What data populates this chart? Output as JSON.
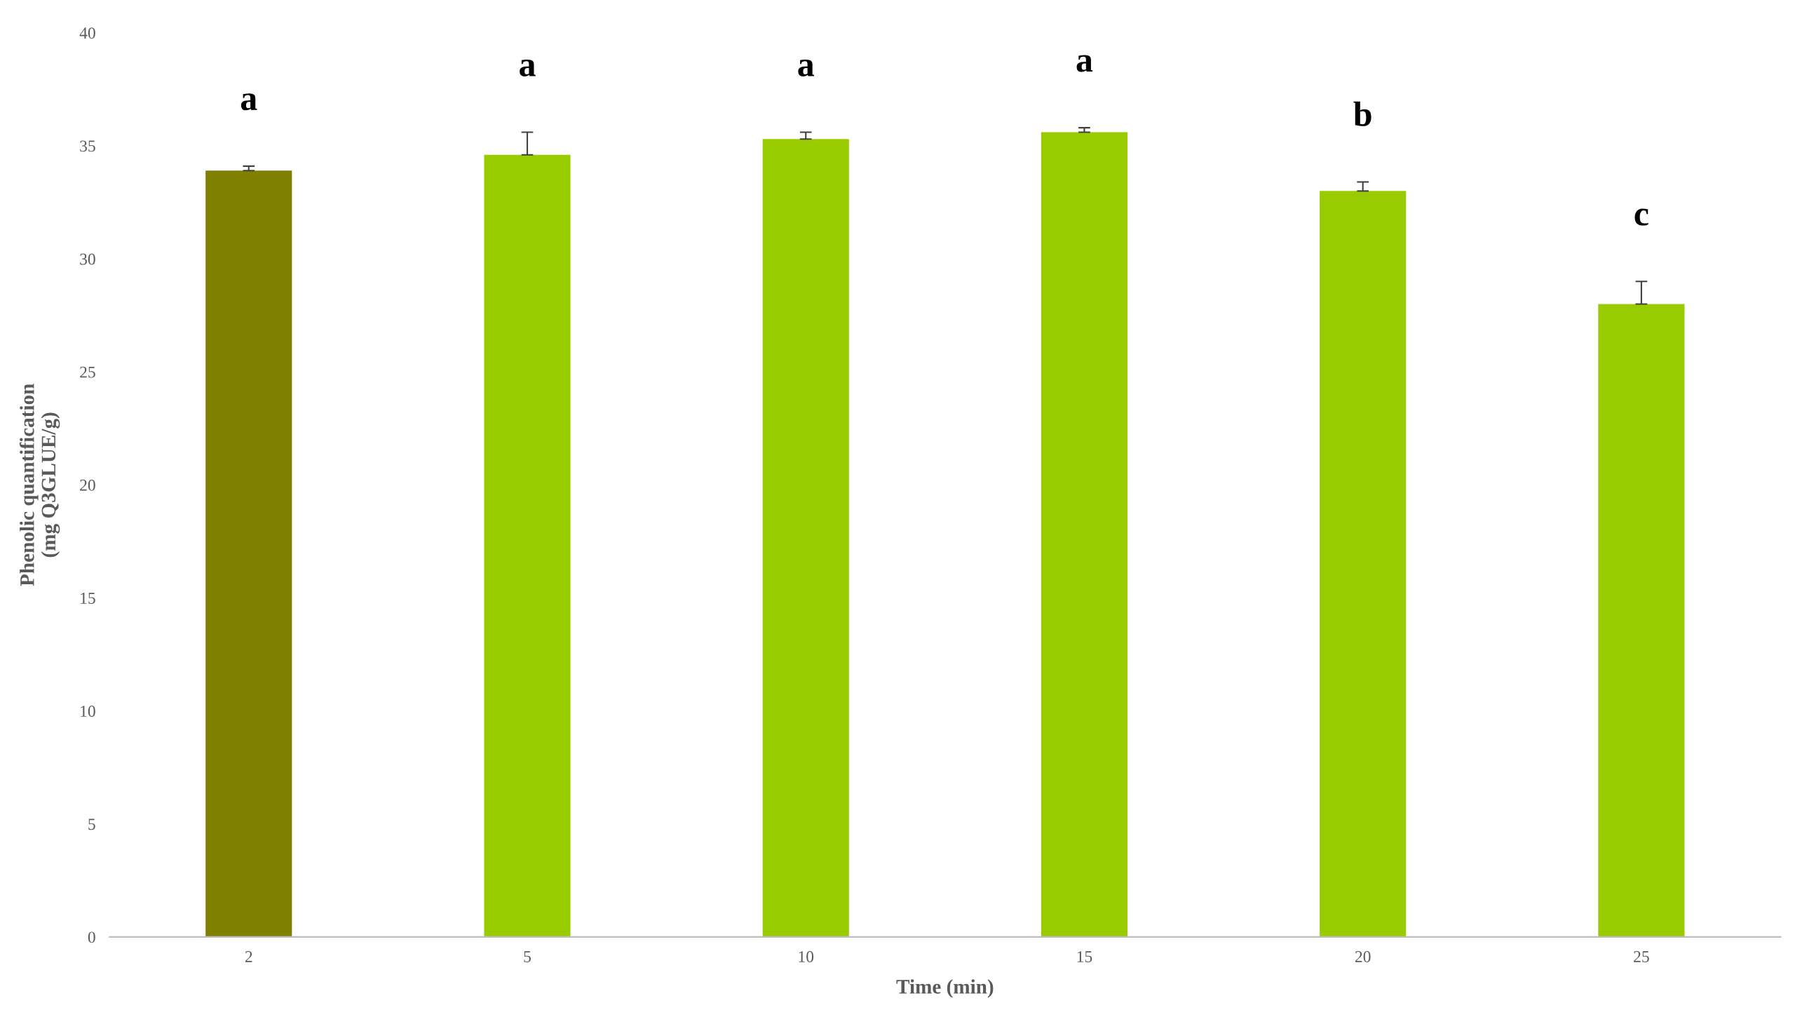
{
  "chart_data": {
    "type": "bar",
    "xlabel": "Time (min)",
    "ylabel": "Phenolic quantification\n(mg Q3GLUE/g)",
    "categories": [
      "2",
      "5",
      "10",
      "15",
      "20",
      "25"
    ],
    "values": [
      33.9,
      34.6,
      35.3,
      35.6,
      33.0,
      28.0
    ],
    "colors": [
      "#7f7f00",
      "#99cc00",
      "#99cc00",
      "#99cc00",
      "#99cc00",
      "#99cc00"
    ],
    "errors": [
      [
        33.9,
        34.1
      ],
      [
        34.6,
        35.6
      ],
      [
        35.3,
        35.6
      ],
      [
        35.6,
        35.8
      ],
      [
        33.0,
        33.4
      ],
      [
        28.0,
        29.0
      ]
    ],
    "ylim": [
      0,
      40
    ],
    "yticks": [
      0,
      5,
      10,
      15,
      20,
      25,
      30,
      35,
      40
    ],
    "grid": false,
    "annotations": [
      "a",
      "a",
      "a",
      "a",
      "b",
      "c"
    ]
  }
}
